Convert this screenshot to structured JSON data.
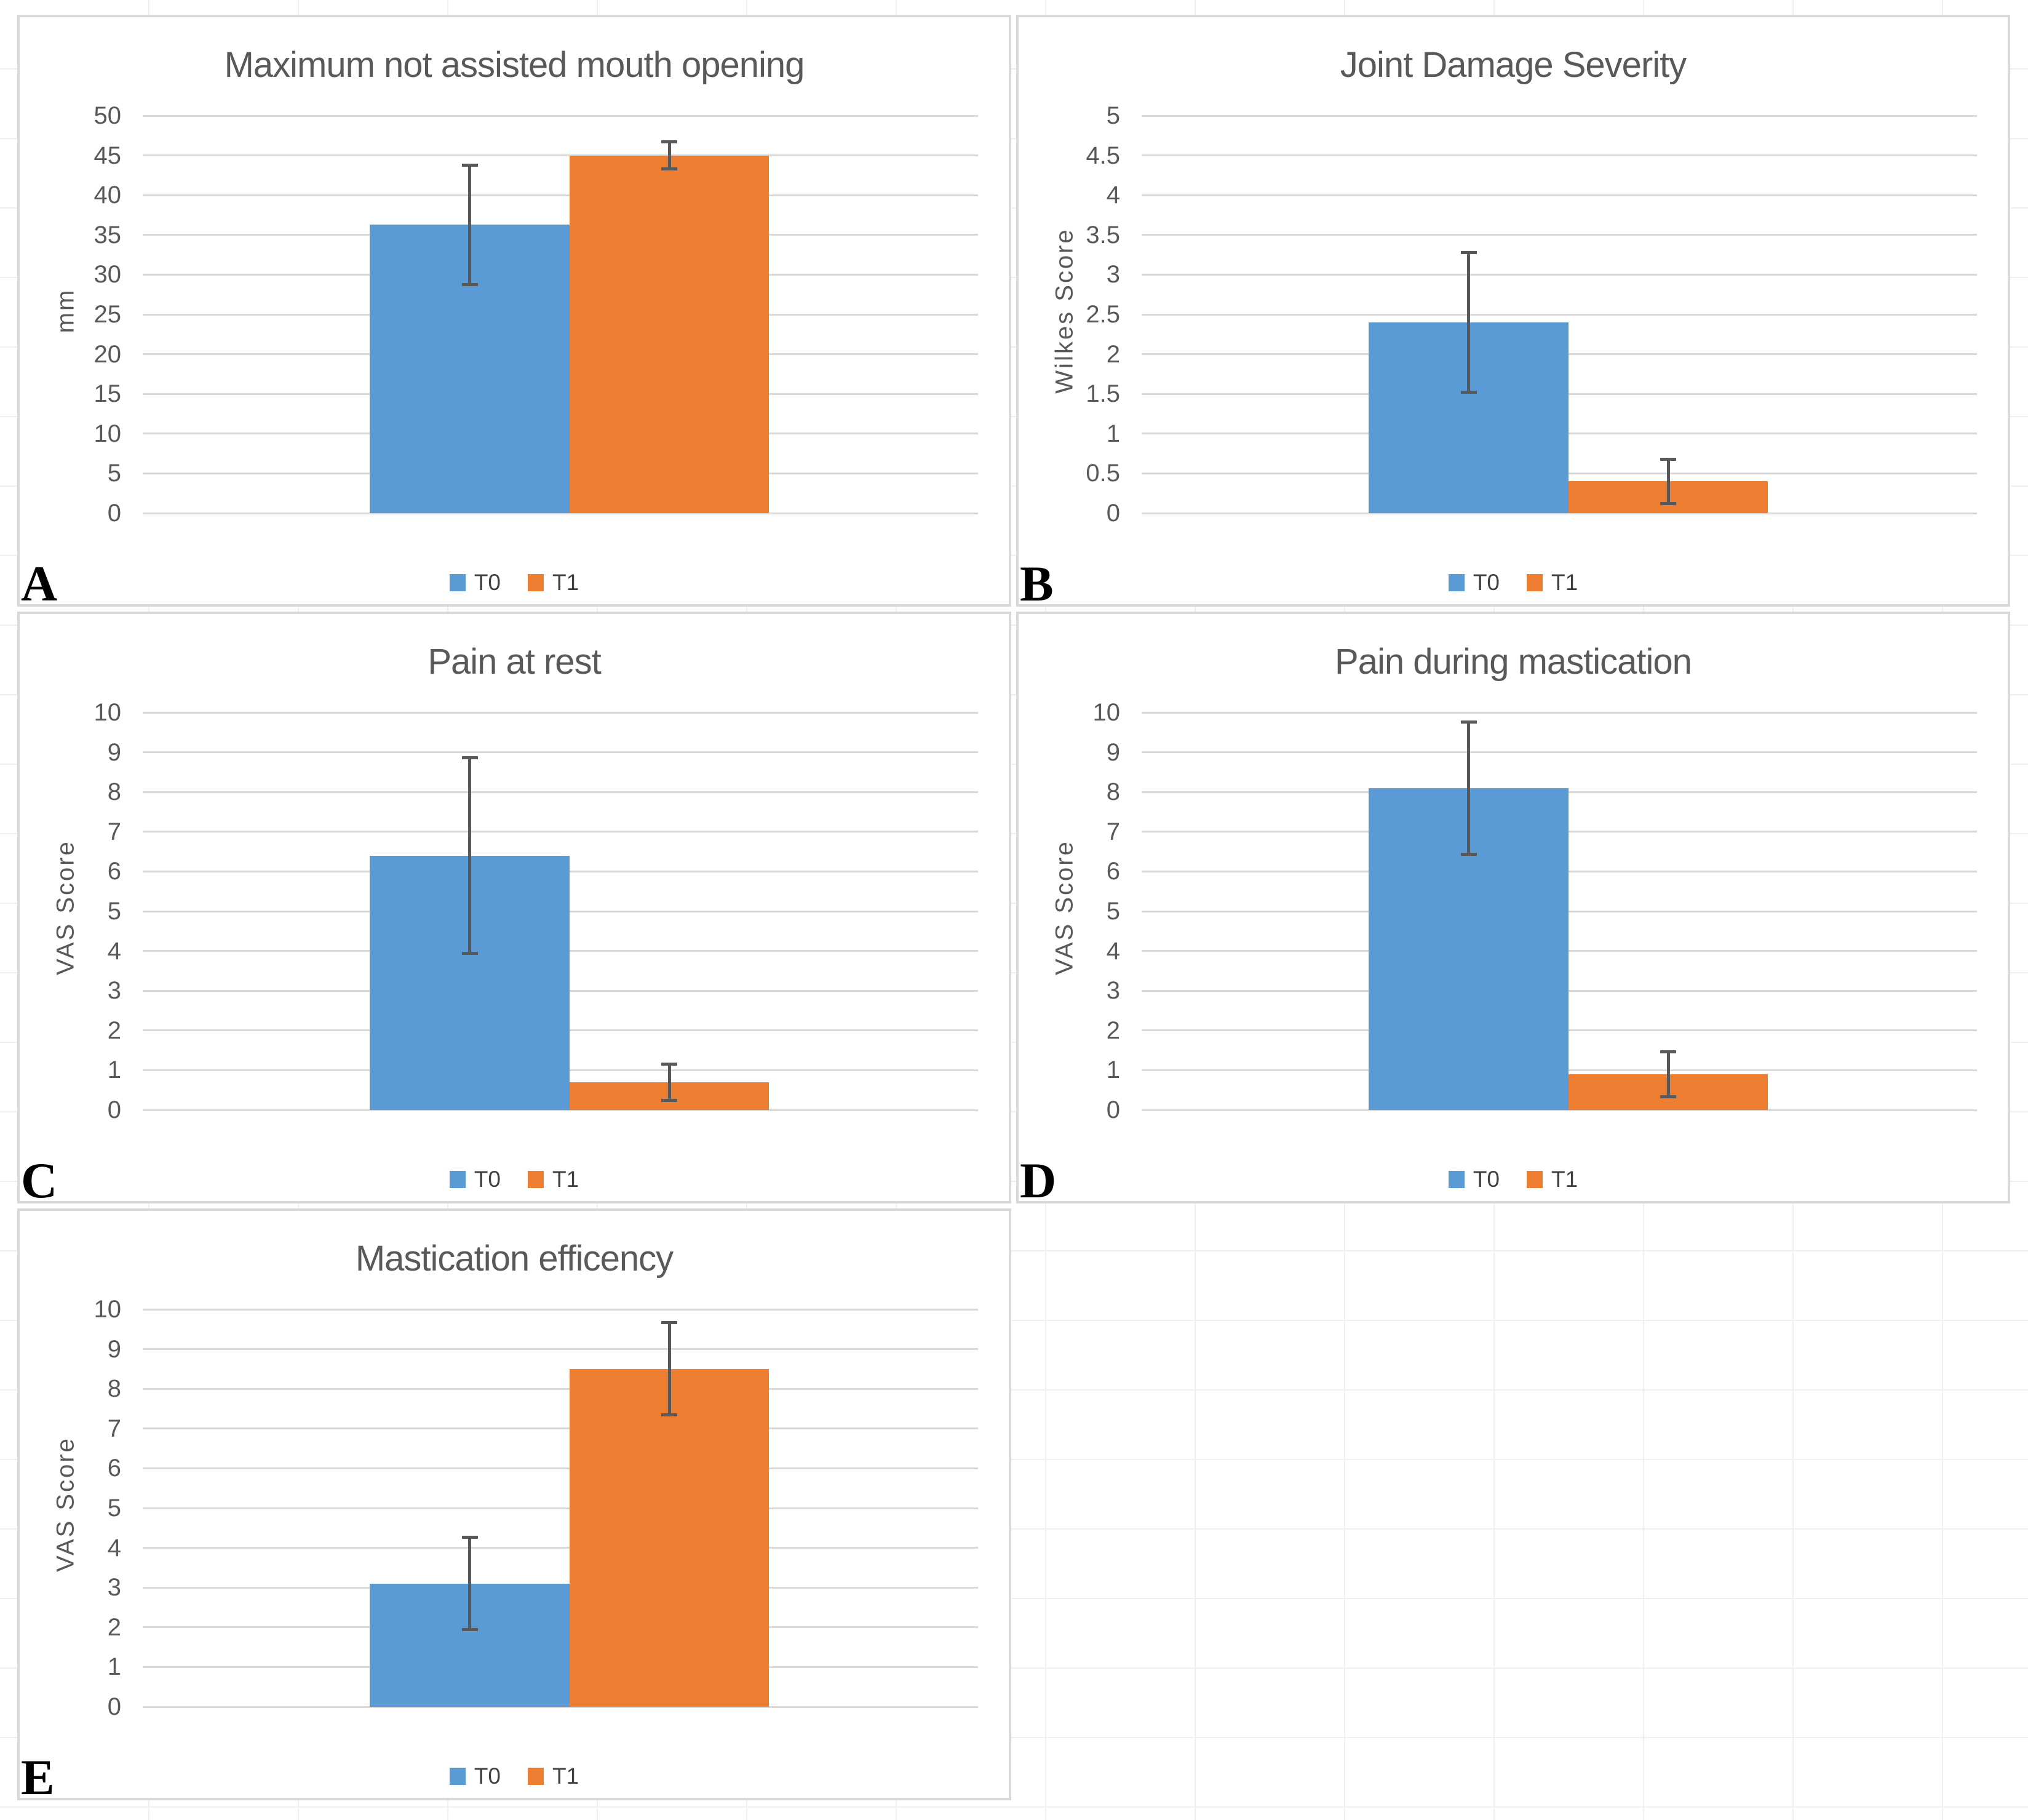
{
  "colors": {
    "bar_t0_blue": "#5B9BD5",
    "bar_t1_orange": "#ED7D31",
    "gridline": "#D9D9D9",
    "panel_border": "#D9D9D9",
    "axis_text": "#595959",
    "error_bar": "#595959",
    "panel_letter": "#000000",
    "background": "#FFFFFF"
  },
  "legend_labels": [
    "T0",
    "T1"
  ],
  "chart_data": [
    {
      "type": "bar",
      "panel_letter": "A",
      "title": "Maximum not assisted mouth opening",
      "ylabel": "mm",
      "ylim": [
        0,
        50
      ],
      "yticks": [
        0,
        5,
        10,
        15,
        20,
        25,
        30,
        35,
        40,
        45,
        50
      ],
      "categories": [
        "T0",
        "T1"
      ],
      "grid": true,
      "legend_position": "bottom",
      "series": [
        {
          "name": "T0",
          "color": "#5B9BD5",
          "value": 36.3,
          "error_low": 28.6,
          "error_high": 44.0
        },
        {
          "name": "T1",
          "color": "#ED7D31",
          "value": 45.0,
          "error_low": 43.1,
          "error_high": 46.9
        }
      ]
    },
    {
      "type": "bar",
      "panel_letter": "B",
      "title": "Joint Damage Severity",
      "ylabel": "Wilkes Score",
      "ylim": [
        0,
        5
      ],
      "yticks": [
        0,
        0.5,
        1,
        1.5,
        2,
        2.5,
        3,
        3.5,
        4,
        4.5,
        5
      ],
      "categories": [
        "T0",
        "T1"
      ],
      "grid": true,
      "legend_position": "bottom",
      "series": [
        {
          "name": "T0",
          "color": "#5B9BD5",
          "value": 2.4,
          "error_low": 1.5,
          "error_high": 3.3
        },
        {
          "name": "T1",
          "color": "#ED7D31",
          "value": 0.4,
          "error_low": 0.1,
          "error_high": 0.7
        }
      ]
    },
    {
      "type": "bar",
      "panel_letter": "C",
      "title": "Pain at rest",
      "ylabel": "VAS Score",
      "ylim": [
        0,
        10
      ],
      "yticks": [
        0,
        1,
        2,
        3,
        4,
        5,
        6,
        7,
        8,
        9,
        10
      ],
      "categories": [
        "T0",
        "T1"
      ],
      "grid": true,
      "legend_position": "bottom",
      "series": [
        {
          "name": "T0",
          "color": "#5B9BD5",
          "value": 6.4,
          "error_low": 3.9,
          "error_high": 8.9
        },
        {
          "name": "T1",
          "color": "#ED7D31",
          "value": 0.7,
          "error_low": 0.2,
          "error_high": 1.2
        }
      ]
    },
    {
      "type": "bar",
      "panel_letter": "D",
      "title": "Pain during mastication",
      "ylabel": "VAS Score",
      "ylim": [
        0,
        10
      ],
      "yticks": [
        0,
        1,
        2,
        3,
        4,
        5,
        6,
        7,
        8,
        9,
        10
      ],
      "categories": [
        "T0",
        "T1"
      ],
      "grid": true,
      "legend_position": "bottom",
      "series": [
        {
          "name": "T0",
          "color": "#5B9BD5",
          "value": 8.1,
          "error_low": 6.4,
          "error_high": 9.8
        },
        {
          "name": "T1",
          "color": "#ED7D31",
          "value": 0.9,
          "error_low": 0.3,
          "error_high": 1.5
        }
      ]
    },
    {
      "type": "bar",
      "panel_letter": "E",
      "title": "Mastication efficency",
      "ylabel": "VAS Score",
      "ylim": [
        0,
        10
      ],
      "yticks": [
        0,
        1,
        2,
        3,
        4,
        5,
        6,
        7,
        8,
        9,
        10
      ],
      "categories": [
        "T0",
        "T1"
      ],
      "grid": true,
      "legend_position": "bottom",
      "series": [
        {
          "name": "T0",
          "color": "#5B9BD5",
          "value": 3.1,
          "error_low": 1.9,
          "error_high": 4.3
        },
        {
          "name": "T1",
          "color": "#ED7D31",
          "value": 8.5,
          "error_low": 7.3,
          "error_high": 9.7
        }
      ]
    }
  ]
}
